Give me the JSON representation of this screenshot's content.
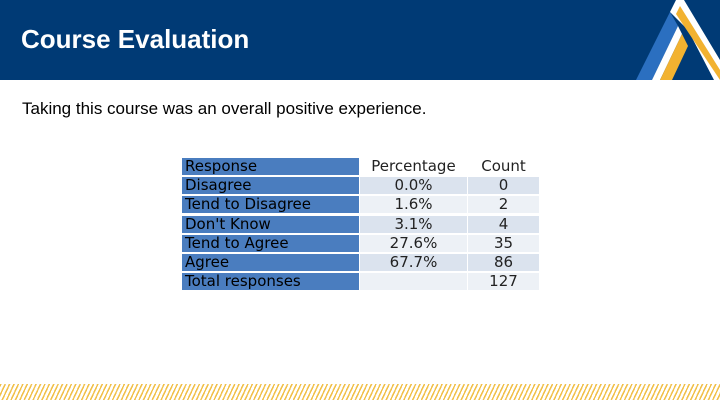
{
  "slide": {
    "title": "Course Evaluation",
    "question": "Taking this course was an overall positive experience."
  },
  "table": {
    "headers": {
      "response": "Response",
      "percentage": "Percentage",
      "count": "Count"
    },
    "rows": [
      {
        "response": "Disagree",
        "percentage": "0.0%",
        "count": "0"
      },
      {
        "response": "Tend to Disagree",
        "percentage": "1.6%",
        "count": "2"
      },
      {
        "response": "Don't Know",
        "percentage": "3.1%",
        "count": "4"
      },
      {
        "response": "Tend to Agree",
        "percentage": "27.6%",
        "count": "35"
      },
      {
        "response": "Agree",
        "percentage": "67.7%",
        "count": "86"
      }
    ],
    "total": {
      "response": "Total responses",
      "percentage": "",
      "count": "127"
    }
  },
  "colors": {
    "header_bar": "#003a75",
    "label_column": "#4a7dbf",
    "logo_gold": "#f2b230",
    "logo_blue": "#2b6fc0"
  },
  "icons": {
    "logo": "striped-a-logo"
  }
}
